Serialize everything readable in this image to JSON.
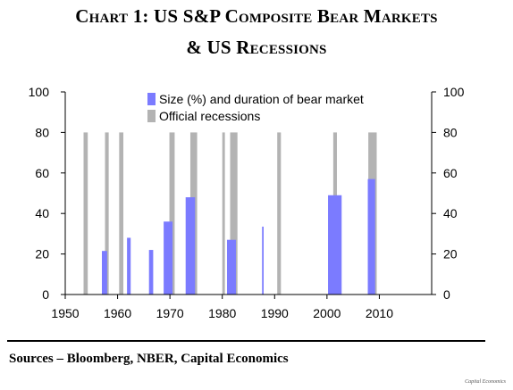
{
  "title_line1": "Chart 1: US S&P Composite Bear Markets",
  "title_line2": "& US Recessions",
  "sources": "Sources – Bloomberg, NBER, Capital Economics",
  "footer_note": "Capital Economics",
  "chart_data": {
    "type": "bar",
    "xlim": [
      1950,
      2020
    ],
    "x_ticks": [
      1950,
      1960,
      1970,
      1980,
      1990,
      2000,
      2010
    ],
    "ylim": [
      0,
      100
    ],
    "y_ticks": [
      0,
      20,
      40,
      60,
      80,
      100
    ],
    "y_ticks_right": [
      0,
      20,
      40,
      60,
      80,
      100
    ],
    "grid": false,
    "legend_position": "top-center",
    "series": [
      {
        "name": "Size (%) and duration of bear market",
        "color": "#7b7bff",
        "bars": [
          {
            "start": 1957.0,
            "end": 1958.0,
            "value": 21.5
          },
          {
            "start": 1961.8,
            "end": 1962.5,
            "value": 28
          },
          {
            "start": 1966.0,
            "end": 1966.8,
            "value": 22
          },
          {
            "start": 1968.8,
            "end": 1970.5,
            "value": 36
          },
          {
            "start": 1973.0,
            "end": 1974.8,
            "value": 48
          },
          {
            "start": 1980.9,
            "end": 1982.6,
            "value": 27
          },
          {
            "start": 1987.6,
            "end": 1987.9,
            "value": 33.5
          },
          {
            "start": 2000.2,
            "end": 2002.8,
            "value": 49
          },
          {
            "start": 2007.8,
            "end": 2009.2,
            "value": 57
          }
        ]
      },
      {
        "name": "Official recessions",
        "color": "#b3b3b3",
        "bars": [
          {
            "start": 1953.5,
            "end": 1954.3,
            "value": 80
          },
          {
            "start": 1957.6,
            "end": 1958.3,
            "value": 80
          },
          {
            "start": 1960.3,
            "end": 1961.1,
            "value": 80
          },
          {
            "start": 1969.9,
            "end": 1970.9,
            "value": 80
          },
          {
            "start": 1973.9,
            "end": 1975.2,
            "value": 80
          },
          {
            "start": 1980.0,
            "end": 1980.5,
            "value": 80
          },
          {
            "start": 1981.5,
            "end": 1982.9,
            "value": 80
          },
          {
            "start": 1990.5,
            "end": 1991.2,
            "value": 80
          },
          {
            "start": 2001.2,
            "end": 2001.9,
            "value": 80
          },
          {
            "start": 2007.9,
            "end": 2009.5,
            "value": 80
          }
        ]
      }
    ]
  }
}
